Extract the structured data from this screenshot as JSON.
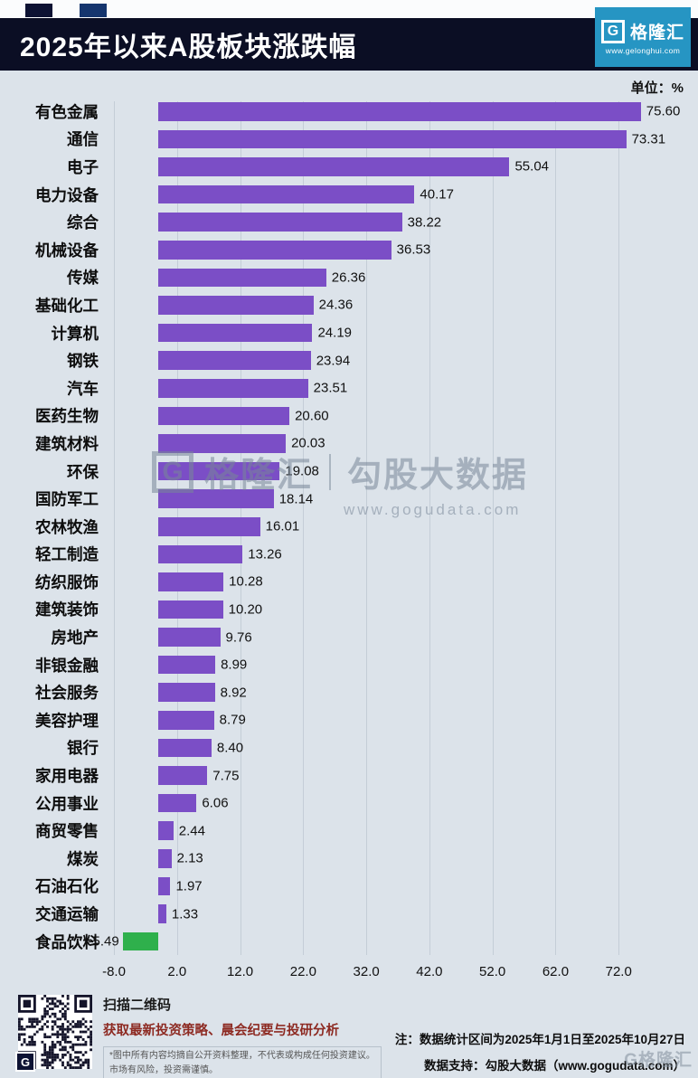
{
  "header": {
    "title": "2025年以来A股板块涨跌幅",
    "logo": {
      "monogram": "G",
      "brand": "格隆汇",
      "url": "www.gelonghui.com"
    }
  },
  "chart": {
    "unit_label": "单位：%"
  },
  "chart_data": {
    "type": "bar",
    "orientation": "horizontal",
    "title": "2025年以来A股板块涨跌幅",
    "unit": "%",
    "categories": [
      "有色金属",
      "通信",
      "电子",
      "电力设备",
      "综合",
      "机械设备",
      "传媒",
      "基础化工",
      "计算机",
      "钢铁",
      "汽车",
      "医药生物",
      "建筑材料",
      "环保",
      "国防军工",
      "农林牧渔",
      "轻工制造",
      "纺织服饰",
      "建筑装饰",
      "房地产",
      "非银金融",
      "社会服务",
      "美容护理",
      "银行",
      "家用电器",
      "公用事业",
      "商贸零售",
      "煤炭",
      "石油石化",
      "交通运输",
      "食品饮料"
    ],
    "values": [
      75.6,
      73.31,
      55.04,
      40.17,
      38.22,
      36.53,
      26.36,
      24.36,
      24.19,
      23.94,
      23.51,
      20.6,
      20.03,
      19.08,
      18.14,
      16.01,
      13.26,
      10.28,
      10.2,
      9.76,
      8.99,
      8.92,
      8.79,
      8.4,
      7.75,
      6.06,
      2.44,
      2.13,
      1.97,
      1.33,
      -5.49
    ],
    "xlim": [
      -8,
      82
    ],
    "xtick_labels": [
      "-8.0",
      "2.0",
      "12.0",
      "22.0",
      "32.0",
      "42.0",
      "52.0",
      "62.0",
      "72.0"
    ],
    "grid": true,
    "legend": false,
    "bar_color": "#7b4ec6",
    "negative_color": "#2fb04c"
  },
  "watermark": {
    "monogram": "G",
    "brand": "格隆汇",
    "partner": "勾股大数据",
    "url": "www.gogudata.com"
  },
  "footer": {
    "qr_caption_1": "扫描二维码",
    "qr_caption_2": "获取最新投资策略、晨会纪要与投研分析",
    "disclaimer_1": "*图中所有内容均摘自公开资料整理，不代表或构成任何投资建议。",
    "disclaimer_2": "市场有风险，投资需谨慎。",
    "note_1": "注：数据统计区间为2025年1月1日至2025年10月27日",
    "note_2": "数据支持：勾股大数据（www.gogudata.com）",
    "qr_badge": "G",
    "corner_watermark": "G格隆汇"
  }
}
